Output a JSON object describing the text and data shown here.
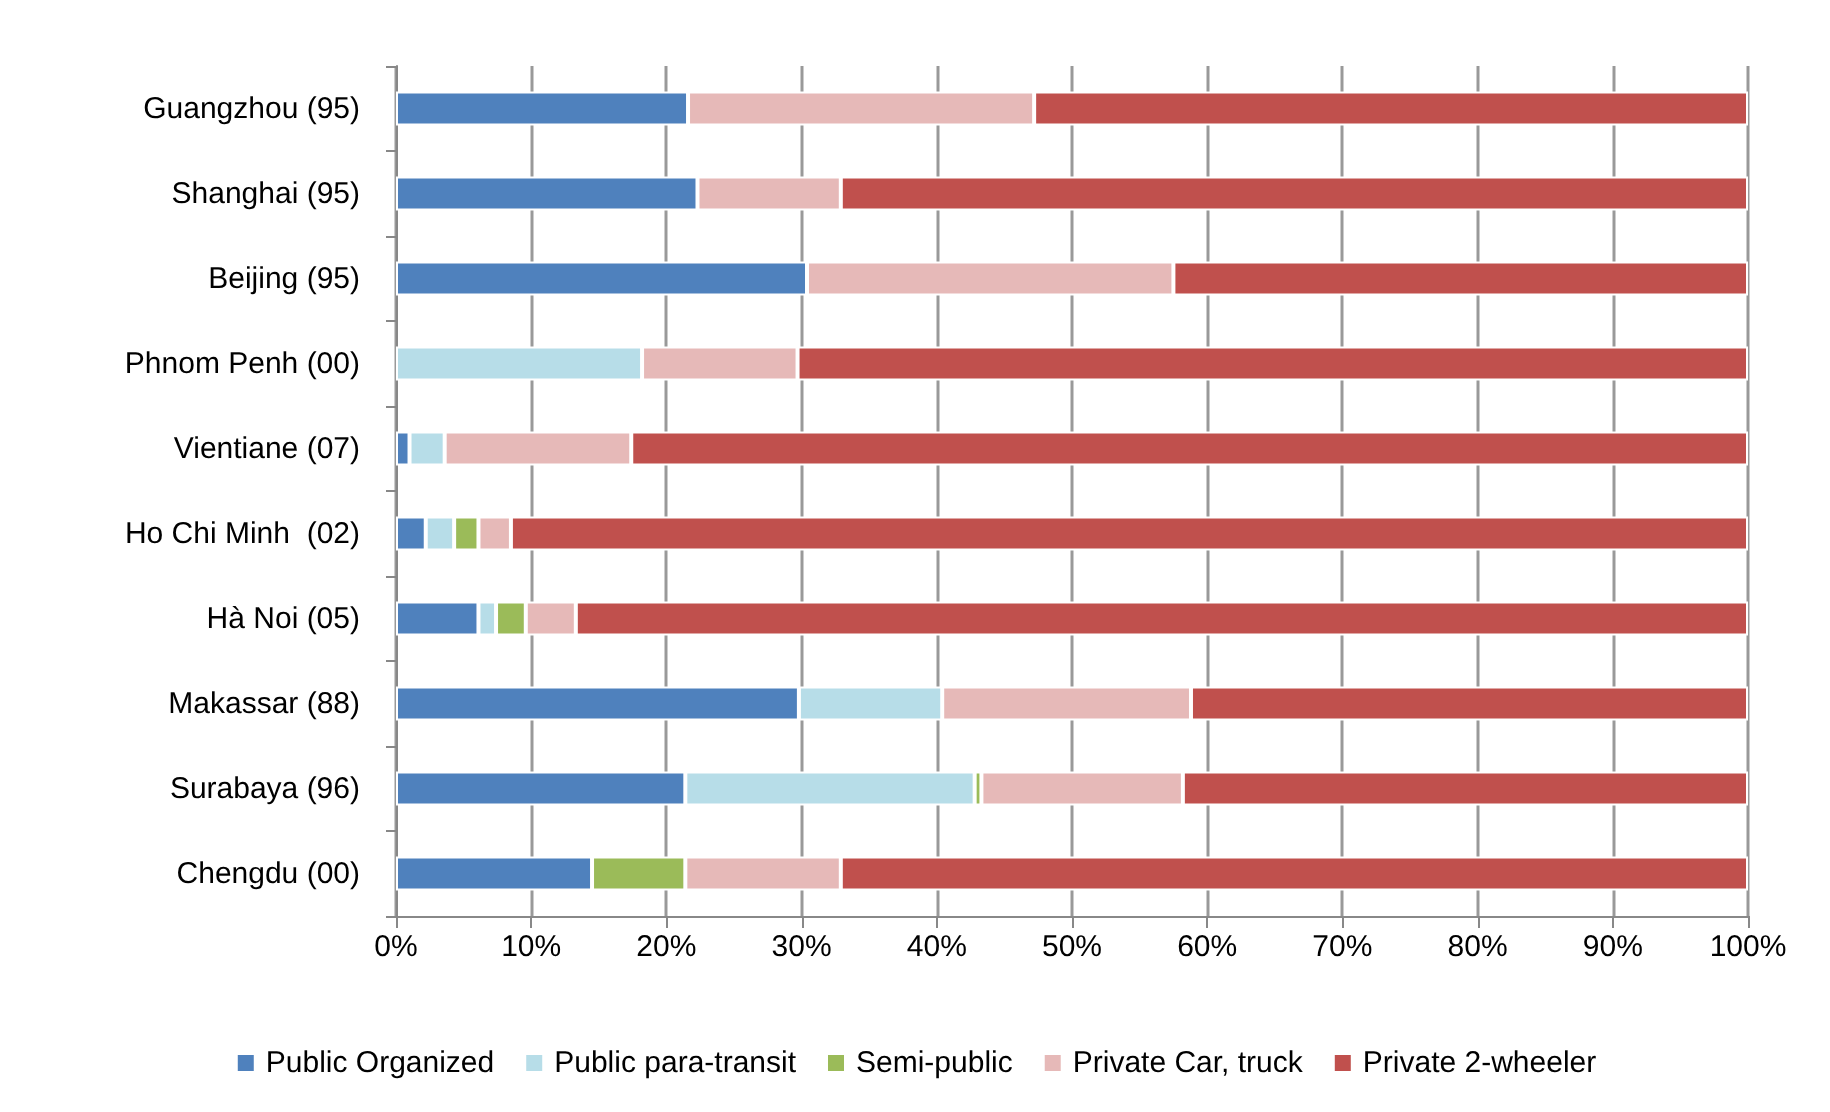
{
  "chart_data": {
    "type": "bar",
    "orientation": "horizontal",
    "stacked": true,
    "categories": [
      "Guangzhou (95)",
      "Shanghai (95)",
      "Beijing (95)",
      "Phnom Penh (00)",
      "Vientiane (07)",
      "Ho Chi Minh  (02)",
      "Hà Noi (05)",
      "Makassar (88)",
      "Surabaya (96)",
      "Chengdu (00)"
    ],
    "series": [
      {
        "name": "Public Organized",
        "color": "#4f81bd",
        "values": [
          21.6,
          22.3,
          30.4,
          0,
          1.0,
          2.2,
          6.1,
          29.8,
          21.4,
          14.5
        ]
      },
      {
        "name": "Public para-transit",
        "color": "#b7dde8",
        "values": [
          0,
          0,
          0,
          18.2,
          2.6,
          2.1,
          1.3,
          10.6,
          21.4,
          0
        ]
      },
      {
        "name": "Semi-public",
        "color": "#9bbb59",
        "values": [
          0,
          0,
          0,
          0,
          0,
          1.8,
          2.2,
          0,
          0.5,
          6.9
        ]
      },
      {
        "name": "Private Car, truck",
        "color": "#e6b9b8",
        "values": [
          25.6,
          10.6,
          27.1,
          11.5,
          13.8,
          2.4,
          3.7,
          18.4,
          14.9,
          11.5
        ]
      },
      {
        "name": "Private 2-wheeler",
        "color": "#c0504d",
        "values": [
          52.8,
          67.1,
          42.5,
          70.3,
          82.6,
          91.5,
          86.7,
          41.2,
          41.8,
          67.1
        ]
      }
    ],
    "xlim": [
      0,
      100
    ],
    "xticks": [
      {
        "value": 0,
        "label": "0%"
      },
      {
        "value": 10,
        "label": "10%"
      },
      {
        "value": 20,
        "label": "20%"
      },
      {
        "value": 30,
        "label": "30%"
      },
      {
        "value": 40,
        "label": "40%"
      },
      {
        "value": 50,
        "label": "50%"
      },
      {
        "value": 60,
        "label": "60%"
      },
      {
        "value": 70,
        "label": "70%"
      },
      {
        "value": 80,
        "label": "80%"
      },
      {
        "value": 90,
        "label": "90%"
      },
      {
        "value": 100,
        "label": "100%"
      }
    ],
    "grid": "x",
    "legend": "bottom"
  }
}
